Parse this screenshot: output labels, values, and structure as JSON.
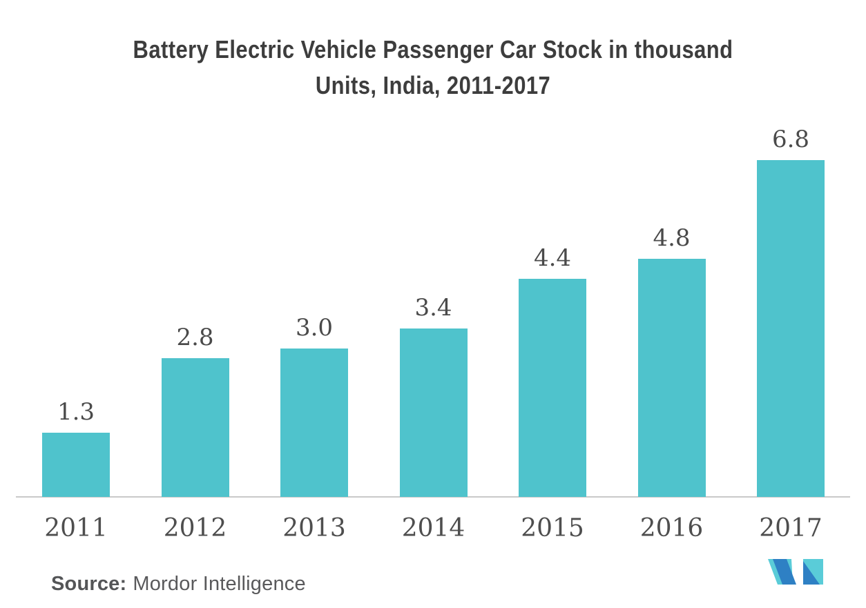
{
  "title": {
    "line1": "Battery Electric Vehicle Passenger Car Stock in thousand",
    "line2": "Units, India, 2011-2017",
    "color": "#3d3d3d"
  },
  "source": {
    "label": "Source:",
    "name": "Mordor Intelligence",
    "color": "#59595b"
  },
  "logo": {
    "name": "mordor-intelligence-logo",
    "teal": "#5accd8",
    "blue": "#2e80c4"
  },
  "chart_data": {
    "type": "bar",
    "title": "Battery Electric Vehicle Passenger Car Stock in thousand Units, India, 2011-2017",
    "categories": [
      "2011",
      "2012",
      "2013",
      "2014",
      "2015",
      "2016",
      "2017"
    ],
    "values": [
      1.3,
      2.8,
      3.0,
      3.4,
      4.4,
      4.8,
      6.8
    ],
    "value_labels": [
      "1.3",
      "2.8",
      "3.0",
      "3.4",
      "4.4",
      "4.8",
      "6.8"
    ],
    "xlabel": "",
    "ylabel": "",
    "ylim": [
      0,
      7.2
    ],
    "grid": false,
    "legend_position": "none",
    "bar_color": "#4fc3cc",
    "value_label_color": "#4a4a4a",
    "tick_label_color": "#4e4e4e",
    "axis_line_color": "#c9c9c9"
  }
}
